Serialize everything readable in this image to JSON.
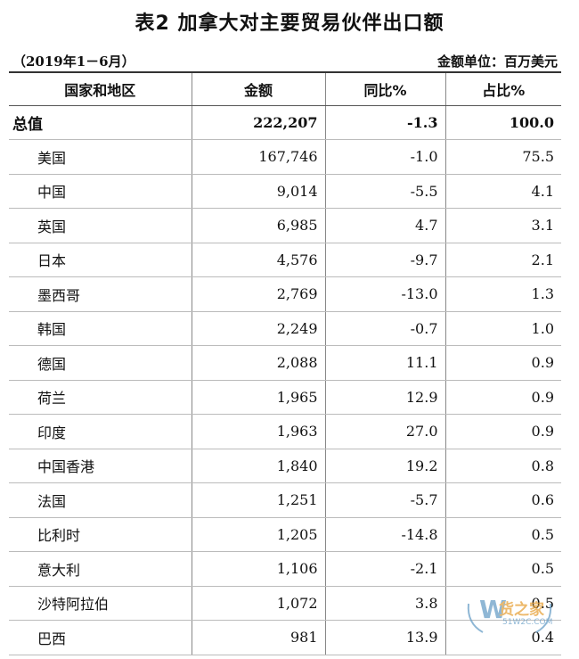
{
  "title": "表2  加拿大对主要贸易伙伴出口额",
  "period": "（2019年1－6月）",
  "unit": "金额单位：百万美元",
  "headers": [
    "国家和地区",
    "金额",
    "同比%",
    "占比%"
  ],
  "rows": [
    [
      "总值",
      "222,207",
      "-1.3",
      "100.0"
    ],
    [
      "美国",
      "167,746",
      "-1.0",
      "75.5"
    ],
    [
      "中国",
      "9,014",
      "-5.5",
      "4.1"
    ],
    [
      "英国",
      "6,985",
      "4.7",
      "3.1"
    ],
    [
      "日本",
      "4,576",
      "-9.7",
      "2.1"
    ],
    [
      "墨西哥",
      "2,769",
      "-13.0",
      "1.3"
    ],
    [
      "韩国",
      "2,249",
      "-0.7",
      "1.0"
    ],
    [
      "德国",
      "2,088",
      "11.1",
      "0.9"
    ],
    [
      "荷兰",
      "1,965",
      "12.9",
      "0.9"
    ],
    [
      "印度",
      "1,963",
      "27.0",
      "0.9"
    ],
    [
      "中国香港",
      "1,840",
      "19.2",
      "0.8"
    ],
    [
      "法国",
      "1,251",
      "-5.7",
      "0.6"
    ],
    [
      "比利时",
      "1,205",
      "-14.8",
      "0.5"
    ],
    [
      "意大利",
      "1,106",
      "-2.1",
      "0.5"
    ],
    [
      "沙特阿拉伯",
      "1,072",
      "3.8",
      "0.5"
    ],
    [
      "巴西",
      "981",
      "13.9",
      "0.4"
    ]
  ],
  "watermark": {
    "text": "货之家",
    "url": "51W2C.COM",
    "accent": "#e7a23a"
  }
}
